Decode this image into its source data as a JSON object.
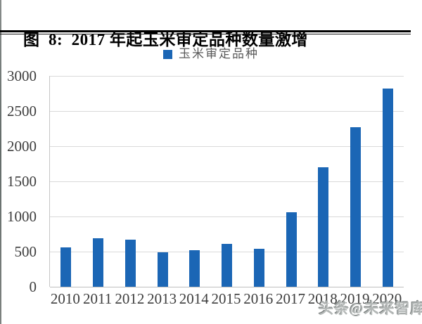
{
  "figure": {
    "title": "图  8:  2017 年起玉米审定品种数量激增"
  },
  "legend": {
    "label": "玉米审定品种",
    "swatch_color": "#1b66b5"
  },
  "watermark": {
    "text": "头条@未来智库"
  },
  "colors": {
    "bar": "#1b66b5",
    "gridline": "#d9d9d9",
    "axis_line": "#bfbfbf",
    "tick_label": "#3d3d3d",
    "legend_text": "#595959",
    "title_text": "#000000"
  },
  "chart_data": {
    "type": "bar",
    "title": "图 8: 2017 年起玉米审定品种数量激增",
    "series_name": "玉米审定品种",
    "categories": [
      "2010",
      "2011",
      "2012",
      "2013",
      "2014",
      "2015",
      "2016",
      "2017",
      "2018",
      "2019",
      "2020"
    ],
    "values": [
      565,
      690,
      670,
      490,
      525,
      610,
      540,
      1060,
      1700,
      2270,
      2820
    ],
    "xlabel": "",
    "ylabel": "",
    "ylim": [
      0,
      3000
    ],
    "yticks": [
      0,
      500,
      1000,
      1500,
      2000,
      2500,
      3000
    ],
    "grid": true,
    "legend_position": "top",
    "bar_color": "#1b66b5"
  }
}
